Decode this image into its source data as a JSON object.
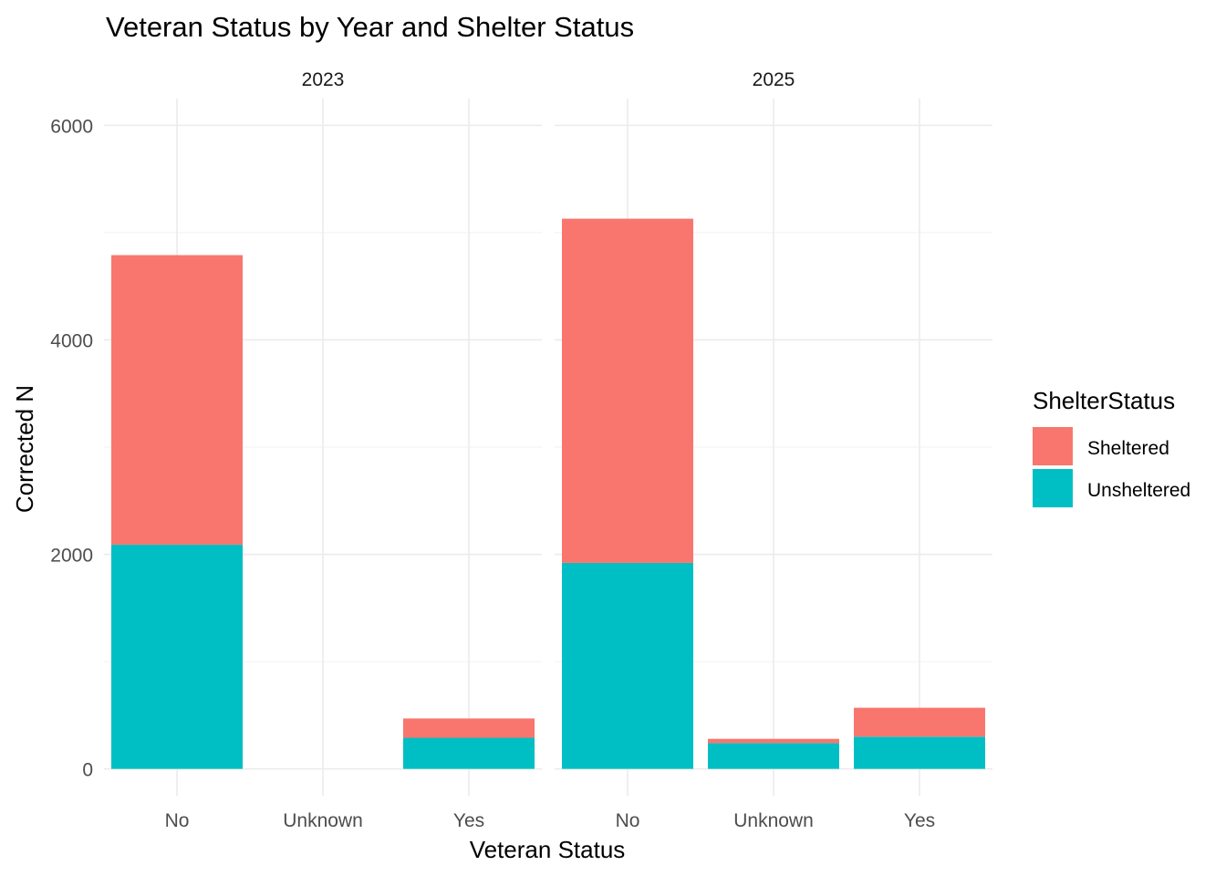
{
  "chart_data": {
    "type": "bar",
    "stacked": true,
    "title": "Veteran Status by Year and Shelter Status",
    "xlabel": "Veteran Status",
    "ylabel": "Corrected N",
    "ylim": [
      -250,
      6250
    ],
    "yticks": [
      0,
      2000,
      4000,
      6000
    ],
    "ytick_labels": [
      "0",
      "2000",
      "4000",
      "6000"
    ],
    "grid": true,
    "legend": {
      "title": "ShelterStatus",
      "placement": "right",
      "entries": [
        {
          "name": "Sheltered",
          "color": "#F8766D"
        },
        {
          "name": "Unsheltered",
          "color": "#00BFC4"
        }
      ]
    },
    "categories": [
      "No",
      "Unknown",
      "Yes"
    ],
    "facets": [
      {
        "label": "2023",
        "series": [
          {
            "name": "Unsheltered",
            "color": "#00BFC4",
            "values": [
              2090,
              0,
              290
            ]
          },
          {
            "name": "Sheltered",
            "color": "#F8766D",
            "values": [
              2700,
              0,
              180
            ]
          }
        ]
      },
      {
        "label": "2025",
        "series": [
          {
            "name": "Unsheltered",
            "color": "#00BFC4",
            "values": [
              1920,
              240,
              300
            ]
          },
          {
            "name": "Sheltered",
            "color": "#F8766D",
            "values": [
              3210,
              40,
              270
            ]
          }
        ]
      }
    ]
  }
}
